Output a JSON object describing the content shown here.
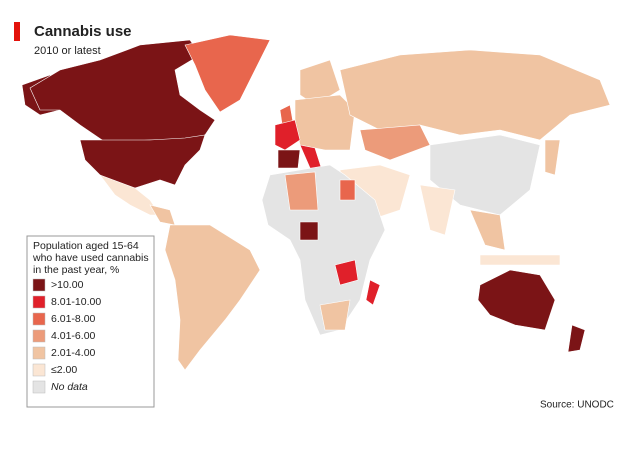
{
  "header": {
    "title": "Cannabis use",
    "subtitle": "2010 or latest"
  },
  "legend": {
    "title": [
      "Population aged 15-64",
      "who have used cannabis",
      "in the past year, %"
    ],
    "items": [
      {
        "label": ">10.00",
        "color": "#7b1416"
      },
      {
        "label": "8.01-10.00",
        "color": "#e0202a"
      },
      {
        "label": "6.01-8.00",
        "color": "#e8664d"
      },
      {
        "label": "4.01-6.00",
        "color": "#ec9b7a"
      },
      {
        "label": "2.01-4.00",
        "color": "#f0c4a2"
      },
      {
        "label": "≤2.00",
        "color": "#fbe6d4"
      },
      {
        "label": "No data",
        "color": "#e4e4e4"
      }
    ]
  },
  "source": "Source: UNODC"
}
